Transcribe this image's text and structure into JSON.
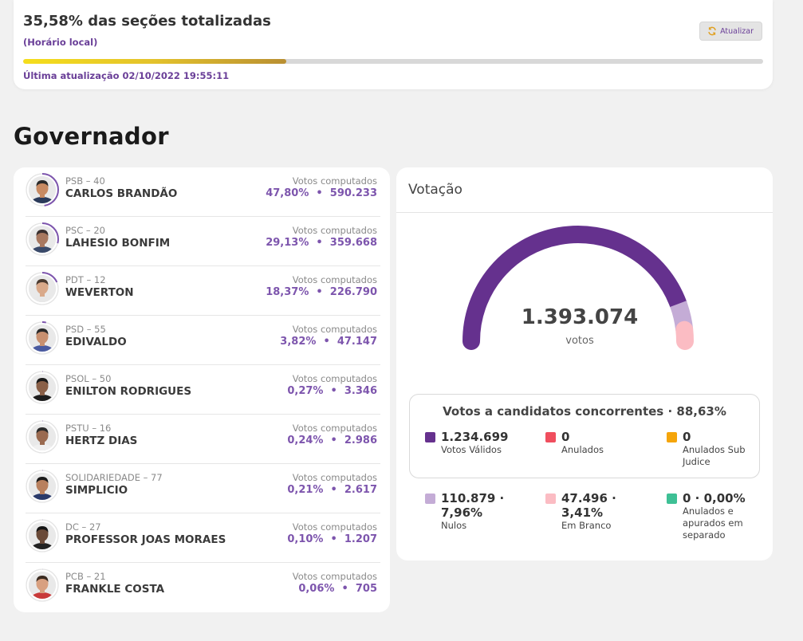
{
  "status": {
    "title": "35,58% das seções totalizadas",
    "local_time": "(Horário local)",
    "refresh_label": "Atualizar",
    "progress_pct": 35.58,
    "last_update": "Última atualização 02/10/2022 19:55:11"
  },
  "section_title": "Governador",
  "candidates": [
    {
      "party": "PSB – 40",
      "name": "CARLOS BRANDÃO",
      "label": "Votos computados",
      "pct": "47,80%",
      "votes": "590.233",
      "pct_value": 47.8,
      "skin": "#c88a62",
      "hair": "#2a2a2a",
      "shirt": "#2a3a5a"
    },
    {
      "party": "PSC – 20",
      "name": "LAHESIO BONFIM",
      "label": "Votos computados",
      "pct": "29,13%",
      "votes": "359.668",
      "pct_value": 29.13,
      "skin": "#a87860",
      "hair": "#3a3030",
      "shirt": "#3a4a6a"
    },
    {
      "party": "PDT – 12",
      "name": "WEVERTON",
      "label": "Votos computados",
      "pct": "18,37%",
      "votes": "226.790",
      "pct_value": 18.37,
      "skin": "#d9a98a",
      "hair": "#4a3a30",
      "shirt": "#e8e8e8"
    },
    {
      "party": "PSD – 55",
      "name": "EDIVALDO",
      "label": "Votos computados",
      "pct": "3,82%",
      "votes": "47.147",
      "pct_value": 3.82,
      "skin": "#c89070",
      "hair": "#2a2a2a",
      "shirt": "#4a5aa0"
    },
    {
      "party": "PSOL – 50",
      "name": "ENILTON RODRIGUES",
      "label": "Votos computados",
      "pct": "0,27%",
      "votes": "3.346",
      "pct_value": 0.27,
      "skin": "#8a6048",
      "hair": "#1a1a1a",
      "shirt": "#1e1e1e"
    },
    {
      "party": "PSTU – 16",
      "name": "HERTZ DIAS",
      "label": "Votos computados",
      "pct": "0,24%",
      "votes": "2.986",
      "pct_value": 0.24,
      "skin": "#9a6a50",
      "hair": "#2a2a2a",
      "shirt": "#f0f0f0"
    },
    {
      "party": "SOLIDARIEDADE – 77",
      "name": "SIMPLICIO",
      "label": "Votos computados",
      "pct": "0,21%",
      "votes": "2.617",
      "pct_value": 0.21,
      "skin": "#b8805e",
      "hair": "#1a1a1a",
      "shirt": "#2a3a6a"
    },
    {
      "party": "DC – 27",
      "name": "PROFESSOR JOAS MORAES",
      "label": "Votos computados",
      "pct": "0,10%",
      "votes": "1.207",
      "pct_value": 0.1,
      "skin": "#6a4a38",
      "hair": "#151515",
      "shirt": "#222222"
    },
    {
      "party": "PCB – 21",
      "name": "FRANKLE COSTA",
      "label": "Votos computados",
      "pct": "0,06%",
      "votes": "705",
      "pct_value": 0.06,
      "skin": "#d8a080",
      "hair": "#3a2a20",
      "shirt": "#c83a3a"
    }
  ],
  "votacao": {
    "title": "Votação",
    "total": "1.393.074",
    "unit": "votos",
    "gauge": [
      {
        "name": "validos",
        "value": 1234699,
        "color": "#65318e"
      },
      {
        "name": "nulos",
        "value": 110879,
        "color": "#c4acd6"
      },
      {
        "name": "brancos",
        "value": 47496,
        "color": "#fbbcc3"
      }
    ],
    "valid_title": "Votos a candidatos concorrentes · 88,63%",
    "stats": [
      {
        "num": "1.234.699",
        "label": "Votos Válidos",
        "color": "#65318e"
      },
      {
        "num": "0",
        "label": "Anulados",
        "color": "#f04e5e"
      },
      {
        "num": "0",
        "label": "Anulados Sub Judice",
        "color": "#f5a50a"
      },
      {
        "num": "110.879 · 7,96%",
        "label": "Nulos",
        "color": "#c4acd6"
      },
      {
        "num": "47.496 · 3,41%",
        "label": "Em Branco",
        "color": "#fbbcc3"
      },
      {
        "num": "0 · 0,00%",
        "label": "Anulados e apurados em separado",
        "color": "#3ec095"
      }
    ]
  }
}
